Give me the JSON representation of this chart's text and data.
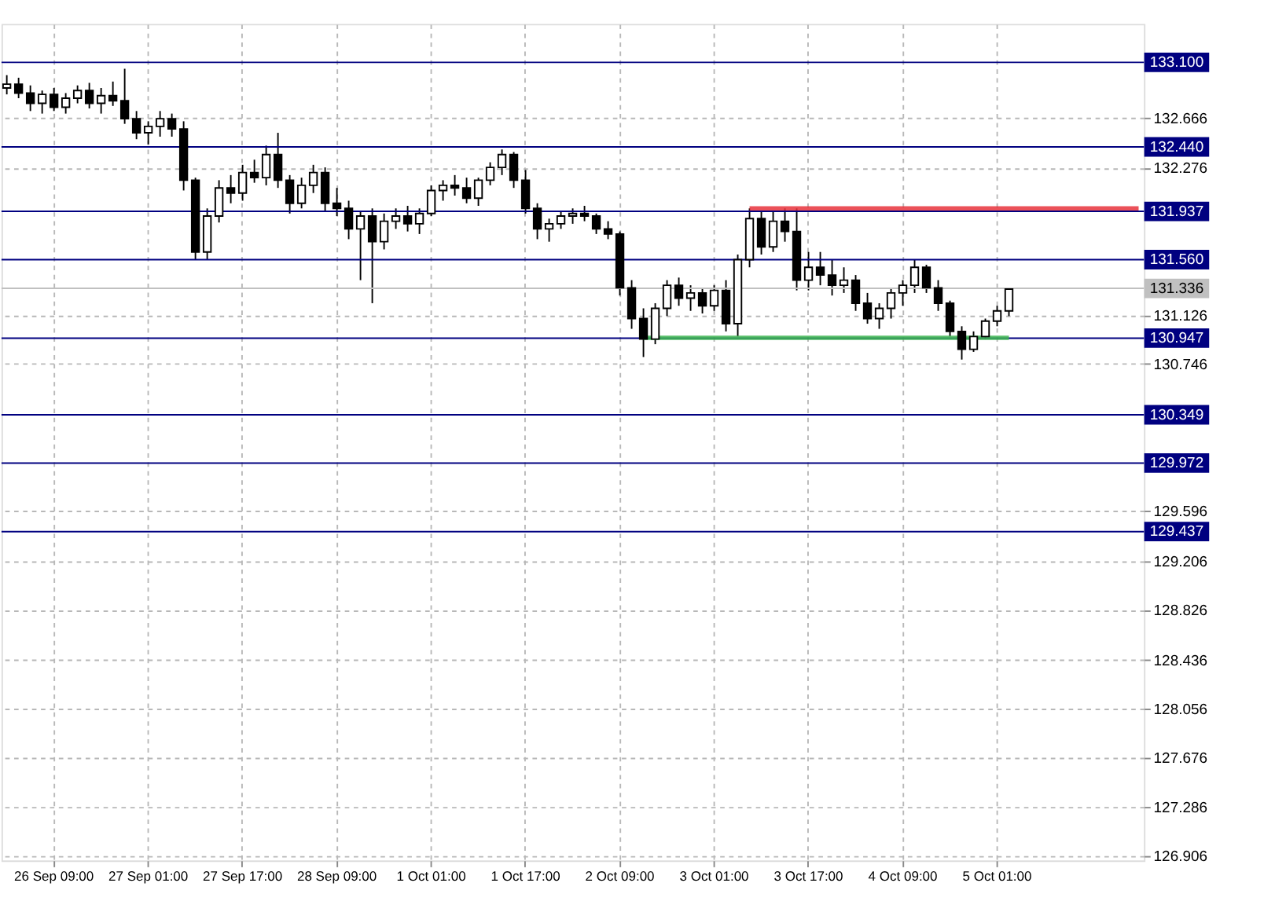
{
  "chart_data": {
    "type": "candlestick",
    "categories": [
      null,
      null,
      null,
      null,
      "26 Sep 09:00",
      null,
      null,
      null,
      null,
      null,
      null,
      null,
      "27 Sep 01:00",
      null,
      null,
      null,
      null,
      null,
      null,
      null,
      "27 Sep 17:00",
      null,
      null,
      null,
      null,
      null,
      null,
      null,
      "28 Sep 09:00",
      null,
      null,
      null,
      null,
      null,
      null,
      null,
      "1 Oct 01:00",
      null,
      null,
      null,
      null,
      null,
      null,
      null,
      "1 Oct 17:00",
      null,
      null,
      null,
      null,
      null,
      null,
      null,
      "2 Oct 09:00",
      null,
      null,
      null,
      null,
      null,
      null,
      null,
      "3 Oct 01:00",
      null,
      null,
      null,
      null,
      null,
      null,
      null,
      "3 Oct 17:00",
      null,
      null,
      null,
      null,
      null,
      null,
      null,
      "4 Oct 09:00",
      null,
      null,
      null,
      null,
      null,
      null,
      null,
      "5 Oct 01:00",
      null,
      null,
      null,
      null,
      null,
      null,
      null,
      null,
      null,
      null,
      null,
      null
    ],
    "ohlc": [
      [
        132.9,
        133.0,
        132.85,
        132.93
      ],
      [
        132.93,
        132.98,
        132.82,
        132.86
      ],
      [
        132.86,
        132.92,
        132.72,
        132.78
      ],
      [
        132.78,
        132.88,
        132.7,
        132.85
      ],
      [
        132.85,
        132.9,
        132.72,
        132.75
      ],
      [
        132.75,
        132.86,
        132.7,
        132.82
      ],
      [
        132.82,
        132.92,
        132.78,
        132.88
      ],
      [
        132.88,
        132.94,
        132.74,
        132.78
      ],
      [
        132.78,
        132.9,
        132.7,
        132.84
      ],
      [
        132.84,
        132.95,
        132.76,
        132.8
      ],
      [
        132.8,
        133.05,
        132.62,
        132.66
      ],
      [
        132.66,
        132.72,
        132.5,
        132.55
      ],
      [
        132.55,
        132.64,
        132.46,
        132.6
      ],
      [
        132.6,
        132.72,
        132.52,
        132.66
      ],
      [
        132.66,
        132.7,
        132.52,
        132.58
      ],
      [
        132.58,
        132.64,
        132.1,
        132.18
      ],
      [
        132.18,
        132.2,
        131.56,
        131.62
      ],
      [
        131.62,
        131.96,
        131.56,
        131.9
      ],
      [
        131.9,
        132.18,
        131.85,
        132.12
      ],
      [
        132.12,
        132.22,
        132.0,
        132.08
      ],
      [
        132.08,
        132.3,
        132.02,
        132.24
      ],
      [
        132.24,
        132.34,
        132.16,
        132.2
      ],
      [
        132.2,
        132.45,
        132.14,
        132.38
      ],
      [
        132.38,
        132.55,
        132.12,
        132.18
      ],
      [
        132.18,
        132.22,
        131.92,
        132.0
      ],
      [
        132.0,
        132.2,
        131.96,
        132.14
      ],
      [
        132.14,
        132.3,
        132.08,
        132.24
      ],
      [
        132.24,
        132.28,
        131.94,
        132.0
      ],
      [
        132.0,
        132.12,
        131.9,
        131.96
      ],
      [
        131.96,
        132.02,
        131.72,
        131.8
      ],
      [
        131.8,
        131.94,
        131.4,
        131.9
      ],
      [
        131.9,
        131.96,
        131.22,
        131.7
      ],
      [
        131.7,
        131.92,
        131.64,
        131.86
      ],
      [
        131.86,
        131.96,
        131.8,
        131.9
      ],
      [
        131.9,
        131.98,
        131.78,
        131.84
      ],
      [
        131.84,
        131.96,
        131.76,
        131.92
      ],
      [
        131.92,
        132.14,
        131.9,
        132.1
      ],
      [
        132.1,
        132.18,
        132.02,
        132.14
      ],
      [
        132.14,
        132.22,
        132.06,
        132.12
      ],
      [
        132.12,
        132.2,
        132.0,
        132.04
      ],
      [
        132.04,
        132.2,
        131.98,
        132.18
      ],
      [
        132.18,
        132.32,
        132.14,
        132.28
      ],
      [
        132.28,
        132.42,
        132.22,
        132.38
      ],
      [
        132.38,
        132.4,
        132.12,
        132.18
      ],
      [
        132.18,
        132.26,
        131.92,
        131.96
      ],
      [
        131.96,
        132.0,
        131.72,
        131.8
      ],
      [
        131.8,
        131.88,
        131.7,
        131.84
      ],
      [
        131.84,
        131.94,
        131.8,
        131.9
      ],
      [
        131.9,
        131.96,
        131.84,
        131.92
      ],
      [
        131.92,
        131.98,
        131.86,
        131.9
      ],
      [
        131.9,
        131.92,
        131.76,
        131.8
      ],
      [
        131.8,
        131.86,
        131.72,
        131.76
      ],
      [
        131.76,
        131.78,
        131.28,
        131.34
      ],
      [
        131.34,
        131.4,
        131.02,
        131.1
      ],
      [
        131.1,
        131.18,
        130.8,
        130.94
      ],
      [
        130.94,
        131.22,
        130.9,
        131.18
      ],
      [
        131.18,
        131.4,
        131.12,
        131.36
      ],
      [
        131.36,
        131.42,
        131.2,
        131.26
      ],
      [
        131.26,
        131.36,
        131.16,
        131.3
      ],
      [
        131.3,
        131.34,
        131.14,
        131.2
      ],
      [
        131.2,
        131.36,
        131.16,
        131.32
      ],
      [
        131.32,
        131.4,
        131.0,
        131.06
      ],
      [
        131.06,
        131.6,
        130.96,
        131.56
      ],
      [
        131.56,
        131.96,
        131.5,
        131.88
      ],
      [
        131.88,
        131.94,
        131.6,
        131.66
      ],
      [
        131.66,
        131.94,
        131.62,
        131.86
      ],
      [
        131.86,
        131.96,
        131.7,
        131.78
      ],
      [
        131.78,
        131.96,
        131.32,
        131.4
      ],
      [
        131.4,
        131.62,
        131.32,
        131.5
      ],
      [
        131.5,
        131.62,
        131.36,
        131.44
      ],
      [
        131.44,
        131.56,
        131.28,
        131.36
      ],
      [
        131.36,
        131.5,
        131.3,
        131.4
      ],
      [
        131.4,
        131.44,
        131.16,
        131.22
      ],
      [
        131.22,
        131.3,
        131.06,
        131.1
      ],
      [
        131.1,
        131.22,
        131.02,
        131.18
      ],
      [
        131.18,
        131.34,
        131.1,
        131.3
      ],
      [
        131.3,
        131.4,
        131.2,
        131.36
      ],
      [
        131.36,
        131.56,
        131.3,
        131.5
      ],
      [
        131.5,
        131.52,
        131.3,
        131.34
      ],
      [
        131.34,
        131.4,
        131.16,
        131.22
      ],
      [
        131.22,
        131.24,
        130.96,
        131.0
      ],
      [
        131.0,
        131.04,
        130.78,
        130.86
      ],
      [
        130.86,
        131.0,
        130.84,
        130.96
      ],
      [
        130.96,
        131.1,
        130.94,
        131.08
      ],
      [
        131.08,
        131.2,
        131.04,
        131.16
      ],
      [
        131.16,
        131.34,
        131.12,
        131.33
      ],
      null,
      null,
      null,
      null,
      null,
      null,
      null,
      null,
      null,
      null,
      null
    ],
    "series": [
      {
        "type": "line",
        "color": "#e8323c",
        "values": [
          null,
          null,
          null,
          null,
          null,
          null,
          null,
          null,
          null,
          null,
          null,
          null,
          null,
          null,
          null,
          null,
          null,
          null,
          null,
          null,
          null,
          null,
          null,
          null,
          null,
          null,
          null,
          null,
          null,
          null,
          null,
          null,
          null,
          null,
          null,
          null,
          null,
          null,
          null,
          null,
          null,
          null,
          null,
          null,
          null,
          null,
          null,
          null,
          null,
          null,
          null,
          null,
          null,
          null,
          null,
          null,
          null,
          null,
          null,
          null,
          null,
          null,
          null,
          131.96,
          131.96,
          131.96,
          131.96,
          131.96,
          131.96,
          131.96,
          131.96,
          131.96,
          131.96,
          131.96,
          131.96,
          131.96,
          131.96,
          131.96,
          131.96,
          131.96,
          131.96,
          131.96,
          131.96,
          131.96,
          131.96,
          131.96,
          131.96,
          131.96,
          131.96,
          131.96,
          131.96,
          131.96,
          131.96,
          131.96,
          131.96,
          131.96,
          131.96
        ]
      },
      {
        "type": "line",
        "color": "#3cb450",
        "values": [
          null,
          null,
          null,
          null,
          null,
          null,
          null,
          null,
          null,
          null,
          null,
          null,
          null,
          null,
          null,
          null,
          null,
          null,
          null,
          null,
          null,
          null,
          null,
          null,
          null,
          null,
          null,
          null,
          null,
          null,
          null,
          null,
          null,
          null,
          null,
          null,
          null,
          null,
          null,
          null,
          null,
          null,
          null,
          null,
          null,
          null,
          null,
          null,
          null,
          null,
          null,
          null,
          null,
          null,
          130.95,
          130.95,
          130.95,
          130.95,
          130.95,
          130.95,
          130.95,
          130.95,
          130.95,
          130.95,
          130.95,
          130.95,
          130.95,
          130.95,
          130.95,
          130.95,
          130.95,
          130.95,
          130.95,
          130.95,
          130.95,
          130.95,
          130.95,
          130.95,
          130.95,
          130.95,
          130.95,
          130.95,
          130.95,
          130.95,
          130.95,
          130.95,
          null,
          null,
          null,
          null,
          null,
          null,
          null,
          null,
          null,
          null,
          null
        ]
      }
    ],
    "ylim": [
      126.87,
      133.4
    ],
    "yticks": [
      132.666,
      132.276,
      131.126,
      130.746,
      129.596,
      129.206,
      128.826,
      128.436,
      128.056,
      127.676,
      127.286,
      126.906
    ],
    "grid": true,
    "ref_lines": [
      {
        "axis": "y",
        "value": 133.1,
        "label": "133.100",
        "color": "#000080"
      },
      {
        "axis": "y",
        "value": 132.44,
        "label": "132.440",
        "color": "#000080"
      },
      {
        "axis": "y",
        "value": 131.937,
        "label": "131.937",
        "color": "#000080"
      },
      {
        "axis": "y",
        "value": 131.56,
        "label": "131.560",
        "color": "#000080"
      },
      {
        "axis": "y",
        "value": 131.336,
        "label": "131.336",
        "color": "#c0c0c0"
      },
      {
        "axis": "y",
        "value": 130.947,
        "label": "130.947",
        "color": "#000080"
      },
      {
        "axis": "y",
        "value": 130.349,
        "label": "130.349",
        "color": "#000080"
      },
      {
        "axis": "y",
        "value": 129.972,
        "label": "129.972",
        "color": "#000080"
      },
      {
        "axis": "y",
        "value": 129.437,
        "label": "129.437",
        "color": "#000080"
      }
    ]
  }
}
